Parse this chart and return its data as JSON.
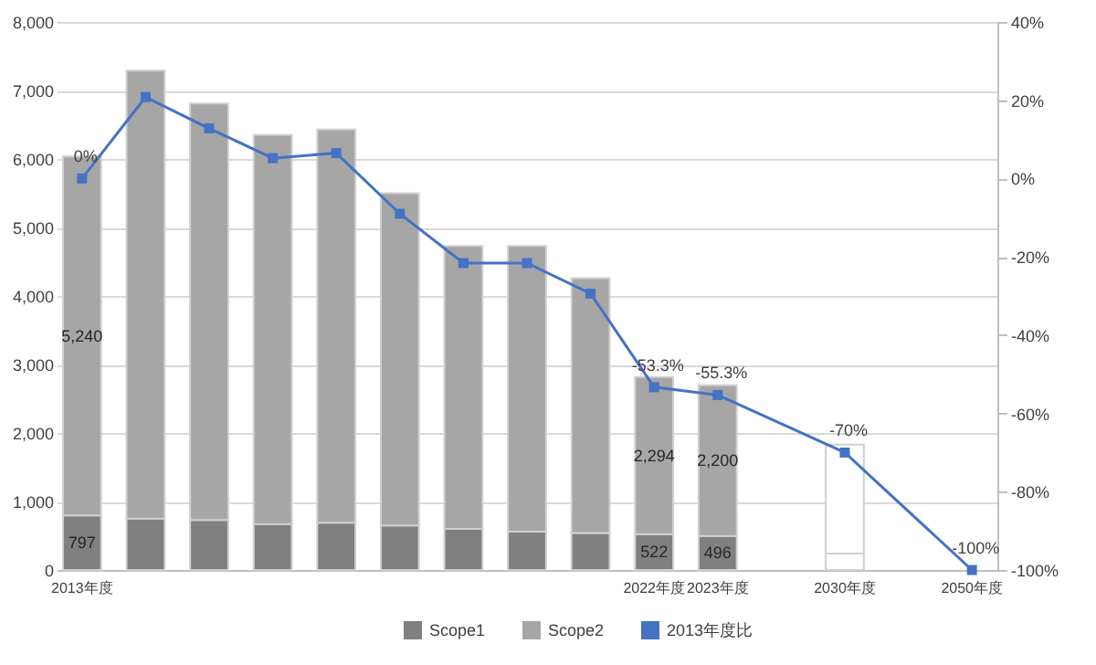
{
  "chart_data": {
    "type": "bar",
    "stacked": true,
    "categories": [
      "2013年度",
      null,
      null,
      null,
      null,
      null,
      null,
      null,
      null,
      "2022年度",
      "2023年度",
      null,
      "2030年度",
      null,
      "2050年度"
    ],
    "series": [
      {
        "name": "Scope1",
        "color": "#808080",
        "values": [
          797,
          750,
          730,
          670,
          690,
          650,
          600,
          560,
          540,
          522,
          496,
          null,
          240,
          null,
          null
        ],
        "colors": [
          "#808080",
          "#808080",
          "#808080",
          "#808080",
          "#808080",
          "#808080",
          "#808080",
          "#808080",
          "#808080",
          "#808080",
          "#808080",
          "#808080",
          "#ffffff",
          "#808080",
          "#808080"
        ],
        "value_labels": [
          "797",
          null,
          null,
          null,
          null,
          null,
          null,
          null,
          null,
          "522",
          "496",
          null,
          null,
          null,
          null
        ]
      },
      {
        "name": "Scope2",
        "color": "#a6a6a6",
        "values": [
          5240,
          6540,
          6080,
          5680,
          5740,
          4850,
          4130,
          4170,
          3720,
          2294,
          2200,
          null,
          1590,
          null,
          null
        ],
        "colors": [
          "#a6a6a6",
          "#a6a6a6",
          "#a6a6a6",
          "#a6a6a6",
          "#a6a6a6",
          "#a6a6a6",
          "#a6a6a6",
          "#a6a6a6",
          "#a6a6a6",
          "#a6a6a6",
          "#a6a6a6",
          "#a6a6a6",
          "#ffffff",
          "#a6a6a6",
          "#a6a6a6"
        ],
        "value_labels": [
          "5,240",
          null,
          null,
          null,
          null,
          null,
          null,
          null,
          null,
          "2,294",
          "2,200",
          null,
          null,
          null,
          null
        ]
      },
      {
        "name": "2013年度比",
        "type": "line",
        "axis": "y2",
        "color": "#4472c4",
        "values": [
          0,
          20.8,
          12.8,
          5.2,
          6.5,
          -9.0,
          -21.6,
          -21.6,
          -29.4,
          -53.3,
          -55.3,
          null,
          -70,
          null,
          -100
        ],
        "value_labels": [
          "0%",
          null,
          null,
          null,
          null,
          null,
          null,
          null,
          null,
          "-53.3%",
          "-55.3%",
          null,
          "-70%",
          null,
          "-100%"
        ]
      }
    ],
    "ylim": [
      0,
      8000
    ],
    "yticks": [
      {
        "value": 0,
        "label": "0"
      },
      {
        "value": 1000,
        "label": "1,000"
      },
      {
        "value": 2000,
        "label": "2,000"
      },
      {
        "value": 3000,
        "label": "3,000"
      },
      {
        "value": 4000,
        "label": "4,000"
      },
      {
        "value": 5000,
        "label": "5,000"
      },
      {
        "value": 6000,
        "label": "6,000"
      },
      {
        "value": 7000,
        "label": "7,000"
      },
      {
        "value": 8000,
        "label": "8,000"
      }
    ],
    "y2lim": [
      -100,
      40
    ],
    "y2ticks": [
      {
        "value": 40,
        "label": "40%"
      },
      {
        "value": 20,
        "label": "20%"
      },
      {
        "value": 0,
        "label": "0%"
      },
      {
        "value": -20,
        "label": "-20%"
      },
      {
        "value": -40,
        "label": "-40%"
      },
      {
        "value": -60,
        "label": "-60%"
      },
      {
        "value": -80,
        "label": "-80%"
      },
      {
        "value": -100,
        "label": "-100%"
      }
    ],
    "grid": "y",
    "legend": "bottom",
    "marker": "square"
  }
}
